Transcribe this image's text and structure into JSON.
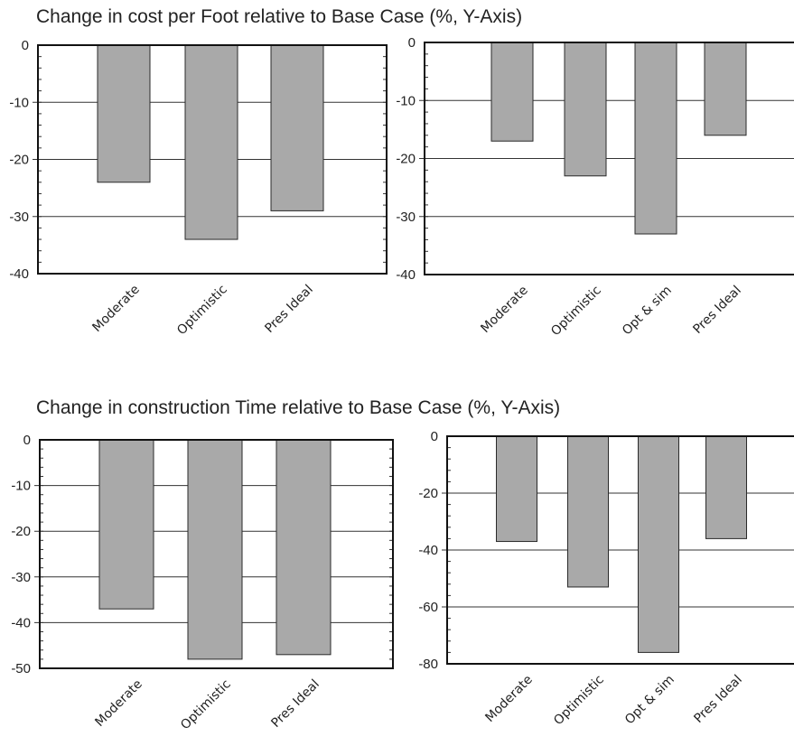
{
  "titles": {
    "top": "Change in cost per Foot relative to Base Case (%, Y-Axis)",
    "bottom": "Change in construction Time relative to Base Case (%, Y-Axis)"
  },
  "colors": {
    "bar": "#a9a9a9",
    "bar_stroke": "#2a2a2a",
    "axis": "#111111"
  },
  "chart_data": [
    {
      "type": "bar",
      "title": "",
      "categories": [
        "Moderate",
        "Optimistic",
        "Pres Ideal"
      ],
      "values": [
        -24,
        -34,
        -29
      ],
      "ylim": [
        -40,
        0
      ],
      "yticks": [
        0,
        -10,
        -20,
        -30,
        -40
      ],
      "grid": true
    },
    {
      "type": "bar",
      "title": "",
      "categories": [
        "Moderate",
        "Optimistic",
        "Opt & sim",
        "Pres Ideal"
      ],
      "values": [
        -17,
        -23,
        -33,
        -16
      ],
      "ylim": [
        -40,
        0
      ],
      "yticks": [
        0,
        -10,
        -20,
        -30,
        -40
      ],
      "grid": true
    },
    {
      "type": "bar",
      "title": "",
      "categories": [
        "Moderate",
        "Optimistic",
        "Pres Ideal"
      ],
      "values": [
        -37,
        -48,
        -47
      ],
      "ylim": [
        -50,
        0
      ],
      "yticks": [
        0,
        -10,
        -20,
        -30,
        -40,
        -50
      ],
      "grid": true
    },
    {
      "type": "bar",
      "title": "",
      "categories": [
        "Moderate",
        "Optimistic",
        "Opt & sim",
        "Pres Ideal"
      ],
      "values": [
        -37,
        -53,
        -76,
        -36
      ],
      "ylim": [
        -80,
        0
      ],
      "yticks": [
        0,
        -20,
        -40,
        -60,
        -80
      ],
      "grid": true
    }
  ]
}
